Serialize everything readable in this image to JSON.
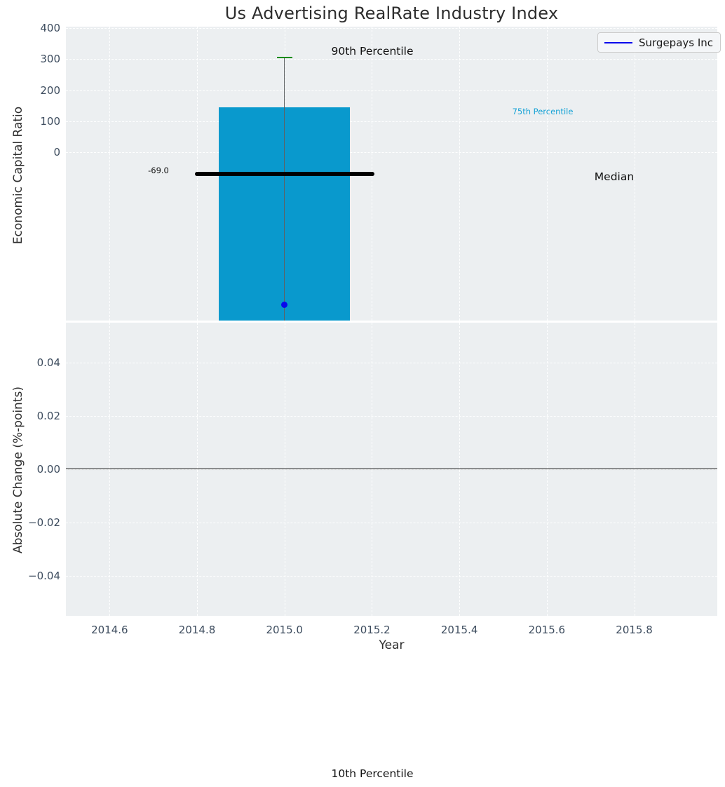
{
  "chart_data": {
    "type": "box-range",
    "title": "Us Advertising RealRate Industry Index",
    "xlabel": "Year",
    "xlim": [
      2014.5,
      2015.99
    ],
    "xticks": {
      "values": [
        2014.6,
        2014.8,
        2015.0,
        2015.2,
        2015.4,
        2015.6,
        2015.8
      ],
      "labels": [
        "2014.6",
        "2014.8",
        "2015.0",
        "2015.2",
        "2015.4",
        "2015.6",
        "2015.8"
      ]
    },
    "panels": [
      {
        "name": "economic-capital-ratio",
        "ylabel": "Economic Capital Ratio",
        "ylim": [
          -540,
          404
        ],
        "yticks": {
          "values": [
            400,
            300,
            200,
            100,
            0
          ],
          "labels": [
            "400",
            "300",
            "200",
            "100",
            "0"
          ]
        },
        "box": {
          "x": 2015.0,
          "bar_width_years": 0.3,
          "median_line_halfwidth_years": 0.205,
          "p90": 305,
          "p75": 145,
          "median": -69.0,
          "p10": "off-scale-below-axis"
        },
        "company_point": {
          "x": 2015.0,
          "y": -490
        }
      },
      {
        "name": "absolute-change",
        "ylabel": "Absolute Change (%-points)",
        "ylim": [
          -0.055,
          0.055
        ],
        "yticks": {
          "values": [
            0.04,
            0.02,
            0,
            -0.02,
            -0.04
          ],
          "labels": [
            "0.04",
            "0.02",
            "0.00",
            "−0.02",
            "−0.04"
          ]
        },
        "zero_line": 0.0
      }
    ],
    "legend": {
      "label": "Surgepays Inc",
      "position": "upper right"
    },
    "annotations": {
      "p90": "90th Percentile",
      "p75": "75th Percentile",
      "median": "Median",
      "median_value": "-69.0",
      "p10": "10th Percentile"
    },
    "grid": true,
    "colors": {
      "axes_bg": "#eceff1",
      "grid": "#ffffff",
      "bar": "#0999cd",
      "company": "#0909ec",
      "p90_cap": "#0e8c0e",
      "median_line": "#000000",
      "p75_text": "#17a3d6",
      "tick_label": "#3d4c5e",
      "text": "#2d2d2d"
    }
  }
}
